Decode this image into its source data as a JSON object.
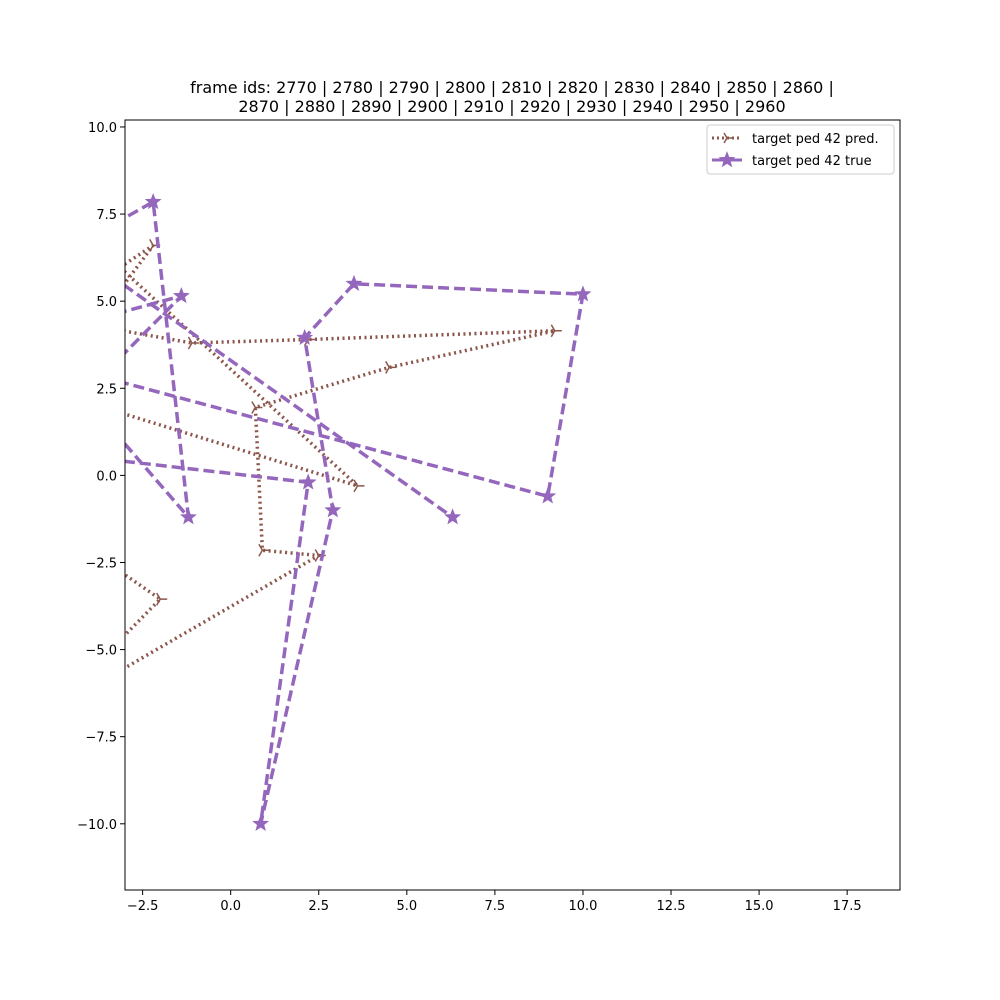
{
  "chart_data": {
    "type": "line",
    "title_lines": [
      "frame ids: 2770 | 2780 | 2790 | 2800 | 2810 | 2820 | 2830 | 2840 | 2850 | 2860 |",
      "2870 | 2880 | 2890 | 2900 | 2910 | 2920 | 2930 | 2940 | 2950 | 2960"
    ],
    "xlim": [
      -3.0,
      19.0
    ],
    "ylim": [
      -11.9,
      10.2
    ],
    "xticks": [
      -2.5,
      0.0,
      2.5,
      5.0,
      7.5,
      10.0,
      12.5,
      15.0,
      17.5
    ],
    "xtick_labels": [
      "−2.5",
      "0.0",
      "2.5",
      "5.0",
      "7.5",
      "10.0",
      "12.5",
      "15.0",
      "17.5"
    ],
    "yticks": [
      -10.0,
      -7.5,
      -5.0,
      -2.5,
      0.0,
      2.5,
      5.0,
      7.5,
      10.0
    ],
    "ytick_labels": [
      "−10.0",
      "−7.5",
      "−5.0",
      "−2.5",
      "0.0",
      "2.5",
      "5.0",
      "7.5",
      "10.0"
    ],
    "grid": false,
    "legend_position": "top-right",
    "series": [
      {
        "name": "target ped 42 pred.",
        "color": "#8c564b",
        "linestyle": "dotted",
        "marker": "tri-right",
        "points": [
          [
            -3.4,
            5.8
          ],
          [
            -2.2,
            6.6
          ],
          [
            -3.9,
            4.3
          ],
          [
            -1.1,
            3.8
          ],
          [
            2.2,
            3.9
          ],
          [
            9.2,
            4.15
          ],
          [
            4.5,
            3.1
          ],
          [
            0.7,
            1.95
          ],
          [
            0.9,
            -2.15
          ],
          [
            2.5,
            -2.3
          ],
          [
            -3.3,
            -5.7
          ],
          [
            -4.2,
            -6.2
          ],
          [
            -3.6,
            -5.2
          ],
          [
            -2.0,
            -3.55
          ],
          [
            -3.8,
            -2.3
          ],
          [
            -3.5,
            -1.2
          ],
          [
            -4.1,
            2.1
          ],
          [
            3.6,
            -0.3
          ],
          [
            -3.5,
            6.3
          ]
        ]
      },
      {
        "name": "target ped 42 true",
        "color": "#9467bd",
        "linestyle": "dashed",
        "marker": "star",
        "points": [
          [
            -3.7,
            7.0
          ],
          [
            -2.2,
            7.85
          ],
          [
            -1.2,
            -1.2
          ],
          [
            -4.2,
            2.3
          ],
          [
            -1.4,
            5.15
          ],
          [
            -3.4,
            4.6
          ],
          [
            -4.6,
            4.2
          ],
          [
            -4.3,
            3.0
          ],
          [
            9.0,
            -0.6
          ],
          [
            10.0,
            5.2
          ],
          [
            3.5,
            5.5
          ],
          [
            2.1,
            3.95
          ],
          [
            2.9,
            -1.0
          ],
          [
            0.85,
            -10.0
          ],
          [
            2.2,
            -0.2
          ],
          [
            -4.7,
            0.6
          ],
          [
            -4.2,
            6.3
          ],
          [
            6.3,
            -1.2
          ]
        ]
      }
    ]
  }
}
